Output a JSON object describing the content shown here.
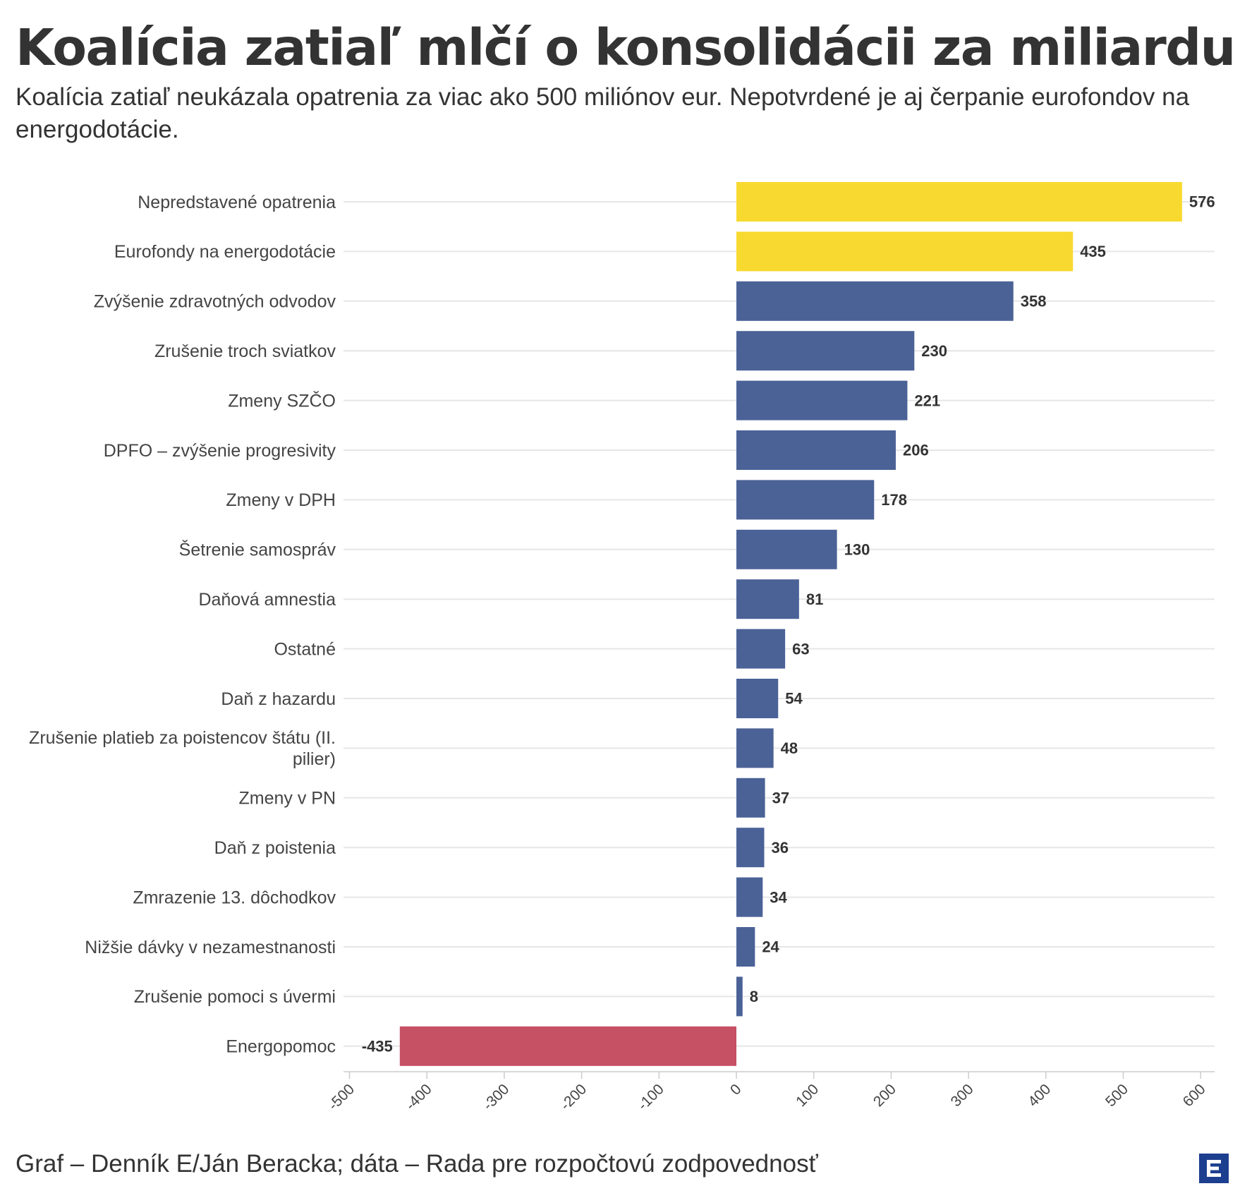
{
  "title": "Koalícia zatiaľ mlčí o konsolidácii za miliardu",
  "subtitle": "Koalícia zatiaľ neukázala opatrenia za viac ako 500 miliónov eur. Nepotvrdené je aj čerpanie eurofondov na energodotácie.",
  "source": "Graf – Denník E/Ján Beracka; dáta – Rada pre rozpočtovú zodpovednosť",
  "logo_icon": "denník-e-logo-icon",
  "colors": {
    "yellow": "#f8d92f",
    "blue": "#4b6297",
    "red": "#c65064",
    "grid": "#e6e6e6",
    "text": "#333333"
  },
  "chart_data": {
    "type": "bar",
    "orientation": "horizontal",
    "categories": [
      "Nepredstavené opatrenia",
      "Eurofondy na energodotácie",
      "Zvýšenie zdravotných odvodov",
      "Zrušenie troch sviatkov",
      "Zmeny SZČO",
      "DPFO – zvýšenie progresivity",
      "Zmeny v DPH",
      "Šetrenie samospráv",
      "Daňová amnestia",
      "Ostatné",
      "Daň z hazardu",
      "Zrušenie platieb za poistencov štátu (II. pilier)",
      "Zmeny v PN",
      "Daň z poistenia",
      "Zmrazenie 13. dôchodkov",
      "Nižšie dávky v nezamestnanosti",
      "Zrušenie pomoci s úvermi",
      "Energopomoc"
    ],
    "values": [
      576,
      435,
      358,
      230,
      221,
      206,
      178,
      130,
      81,
      63,
      54,
      48,
      37,
      36,
      34,
      24,
      8,
      -435
    ],
    "bar_colors": [
      "yellow",
      "yellow",
      "blue",
      "blue",
      "blue",
      "blue",
      "blue",
      "blue",
      "blue",
      "blue",
      "blue",
      "blue",
      "blue",
      "blue",
      "blue",
      "blue",
      "blue",
      "red"
    ],
    "xlim": [
      -500,
      620
    ],
    "xticks": [
      -500,
      -400,
      -300,
      -200,
      -100,
      0,
      100,
      200,
      300,
      400,
      500,
      600
    ],
    "grid": true,
    "data_labels": true
  }
}
